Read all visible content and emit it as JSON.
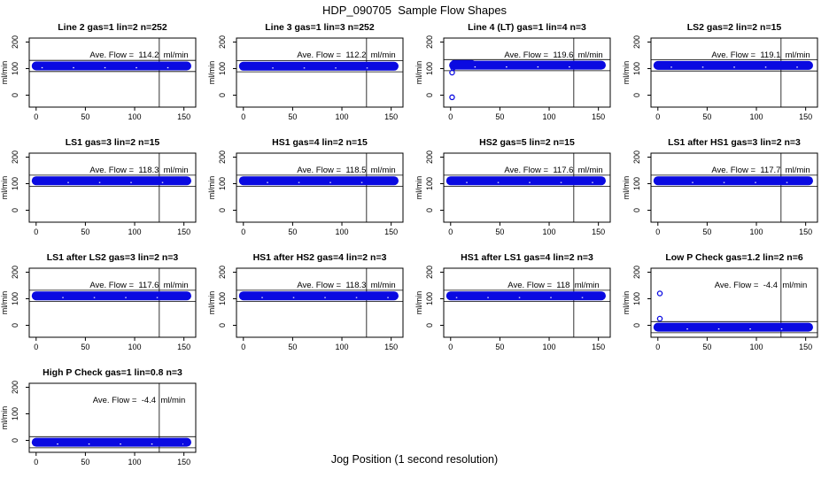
{
  "chart_data": {
    "type": "scatter",
    "title": "HDP_090705  Sample Flow Shapes",
    "xlabel": "Jog Position (1 second resolution)",
    "ylabel": "ml/min",
    "x_ticks": [
      0,
      50,
      100,
      150
    ],
    "y_ticks": [
      0,
      100,
      200
    ],
    "xlim": [
      -7,
      162
    ],
    "ylim": [
      -45,
      215
    ],
    "vline_x": 125,
    "ref_offset": 21,
    "point_color": "#0a0ae1",
    "annotation_prefix": "Ave. Flow =",
    "annotation_unit": "ml/min",
    "grid_columns": 4,
    "subplots": [
      {
        "title": "Line 2 gas=1 lin=2 n=252",
        "ave_flow": "114.2",
        "band": {
          "x0": 0,
          "x1": 153,
          "y": 110
        },
        "outliers": []
      },
      {
        "title": "Line 3 gas=1 lin=3 n=252",
        "ave_flow": "112.2",
        "band": {
          "x0": 0,
          "x1": 153,
          "y": 109
        },
        "outliers": []
      },
      {
        "title": "Line 4 (LT) gas=1 lin=4 n=3",
        "ave_flow": "119.6",
        "band": {
          "x0": 3,
          "x1": 153,
          "y": 113
        },
        "outliers": [
          [
            1.5,
            -8
          ],
          [
            1.5,
            85
          ],
          [
            2.5,
            103
          ]
        ],
        "extra_band": {
          "x0": 3,
          "x1": 22,
          "y": 122
        }
      },
      {
        "title": "LS2 gas=2 lin=2 n=15",
        "ave_flow": "119.1",
        "band": {
          "x0": 0,
          "x1": 153,
          "y": 112
        },
        "outliers": []
      },
      {
        "title": "LS1 gas=3 lin=2 n=15",
        "ave_flow": "118.3",
        "band": {
          "x0": 0,
          "x1": 153,
          "y": 111
        },
        "outliers": []
      },
      {
        "title": "HS1 gas=4 lin=2 n=15",
        "ave_flow": "118.5",
        "band": {
          "x0": 0,
          "x1": 153,
          "y": 111
        },
        "outliers": []
      },
      {
        "title": "HS2 gas=5 lin=2 n=15",
        "ave_flow": "117.6",
        "band": {
          "x0": 0,
          "x1": 153,
          "y": 111
        },
        "outliers": []
      },
      {
        "title": "LS1 after HS1 gas=3 lin=2 n=3",
        "ave_flow": "117.7",
        "band": {
          "x0": 0,
          "x1": 153,
          "y": 111
        },
        "outliers": []
      },
      {
        "title": "LS1 after LS2 gas=3 lin=2 n=3",
        "ave_flow": "117.6",
        "band": {
          "x0": 0,
          "x1": 153,
          "y": 111
        },
        "outliers": []
      },
      {
        "title": "HS1 after HS2 gas=4 lin=2 n=3",
        "ave_flow": "118.3",
        "band": {
          "x0": 0,
          "x1": 153,
          "y": 111
        },
        "outliers": []
      },
      {
        "title": "HS1 after LS1 gas=4 lin=2 n=3",
        "ave_flow": "118",
        "band": {
          "x0": 0,
          "x1": 153,
          "y": 111
        },
        "outliers": []
      },
      {
        "title": "Low P Check gas=1.2 lin=2 n=6",
        "ave_flow": "-4.4",
        "band": {
          "x0": 0,
          "x1": 153,
          "y": -7
        },
        "outliers": [
          [
            2,
            120
          ],
          [
            2,
            25
          ]
        ]
      },
      {
        "title": "High P Check gas=1 lin=0.8 n=3",
        "ave_flow": "-4.4",
        "band": {
          "x0": 0,
          "x1": 153,
          "y": -7
        },
        "outliers": []
      }
    ]
  }
}
